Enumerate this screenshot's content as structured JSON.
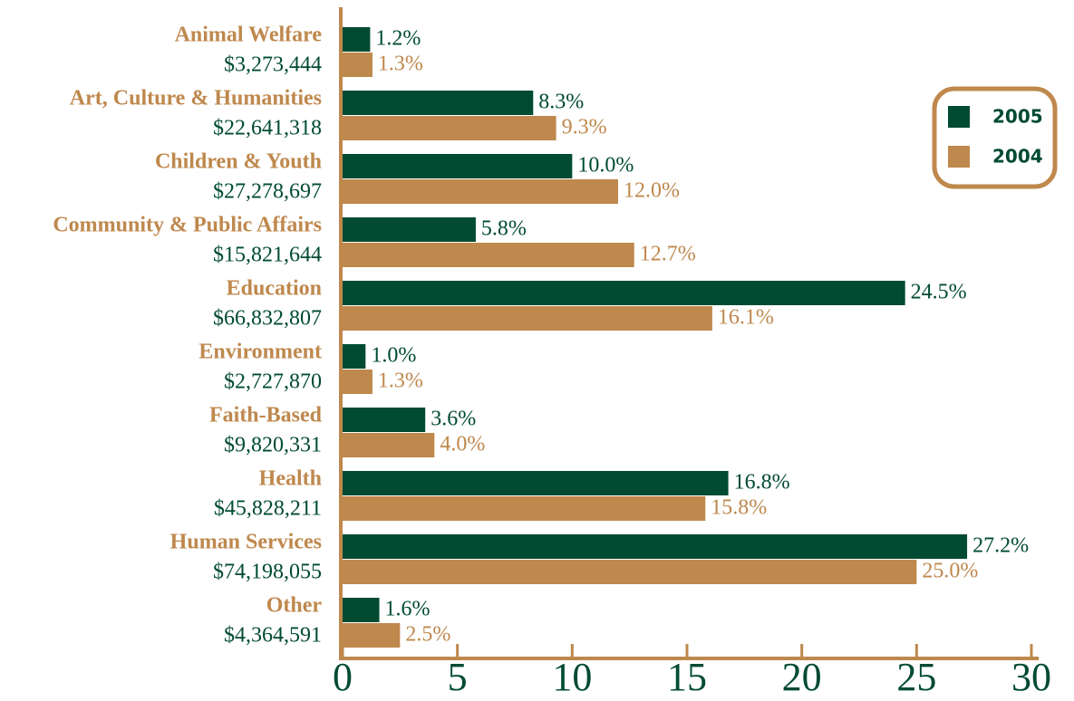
{
  "chart_data": {
    "type": "bar",
    "orientation": "horizontal",
    "categories": [
      "Animal Welfare",
      "Art, Culture & Humanities",
      "Children & Youth",
      "Community & Public Affairs",
      "Education",
      "Environment",
      "Faith-Based",
      "Health",
      "Human Services",
      "Other"
    ],
    "amounts": [
      "$3,273,444",
      "$22,641,318",
      "$27,278,697",
      "$15,821,644",
      "$66,832,807",
      "$2,727,870",
      "$9,820,331",
      "$45,828,211",
      "$74,198,055",
      "$4,364,591"
    ],
    "series": [
      {
        "name": "2005",
        "color": "#004b32",
        "values": [
          1.2,
          8.3,
          10.0,
          5.8,
          24.5,
          1.0,
          3.6,
          16.8,
          27.2,
          1.6
        ],
        "value_labels": [
          "1.2%",
          "8.3%",
          "10.0%",
          "5.8%",
          "24.5%",
          "1.0%",
          "3.6%",
          "16.8%",
          "27.2%",
          "1.6%"
        ]
      },
      {
        "name": "2004",
        "color": "#bf884d",
        "values": [
          1.3,
          9.3,
          12.0,
          12.7,
          16.1,
          1.3,
          4.0,
          15.8,
          25.0,
          2.5
        ],
        "value_labels": [
          "1.3%",
          "9.3%",
          "12.0%",
          "12.7%",
          "16.1%",
          "1.3%",
          "4.0%",
          "15.8%",
          "25.0%",
          "2.5%"
        ]
      }
    ],
    "xlim": [
      0,
      30
    ],
    "xticks": [
      0,
      5,
      10,
      15,
      20,
      25,
      30
    ],
    "legend": "upper right"
  }
}
